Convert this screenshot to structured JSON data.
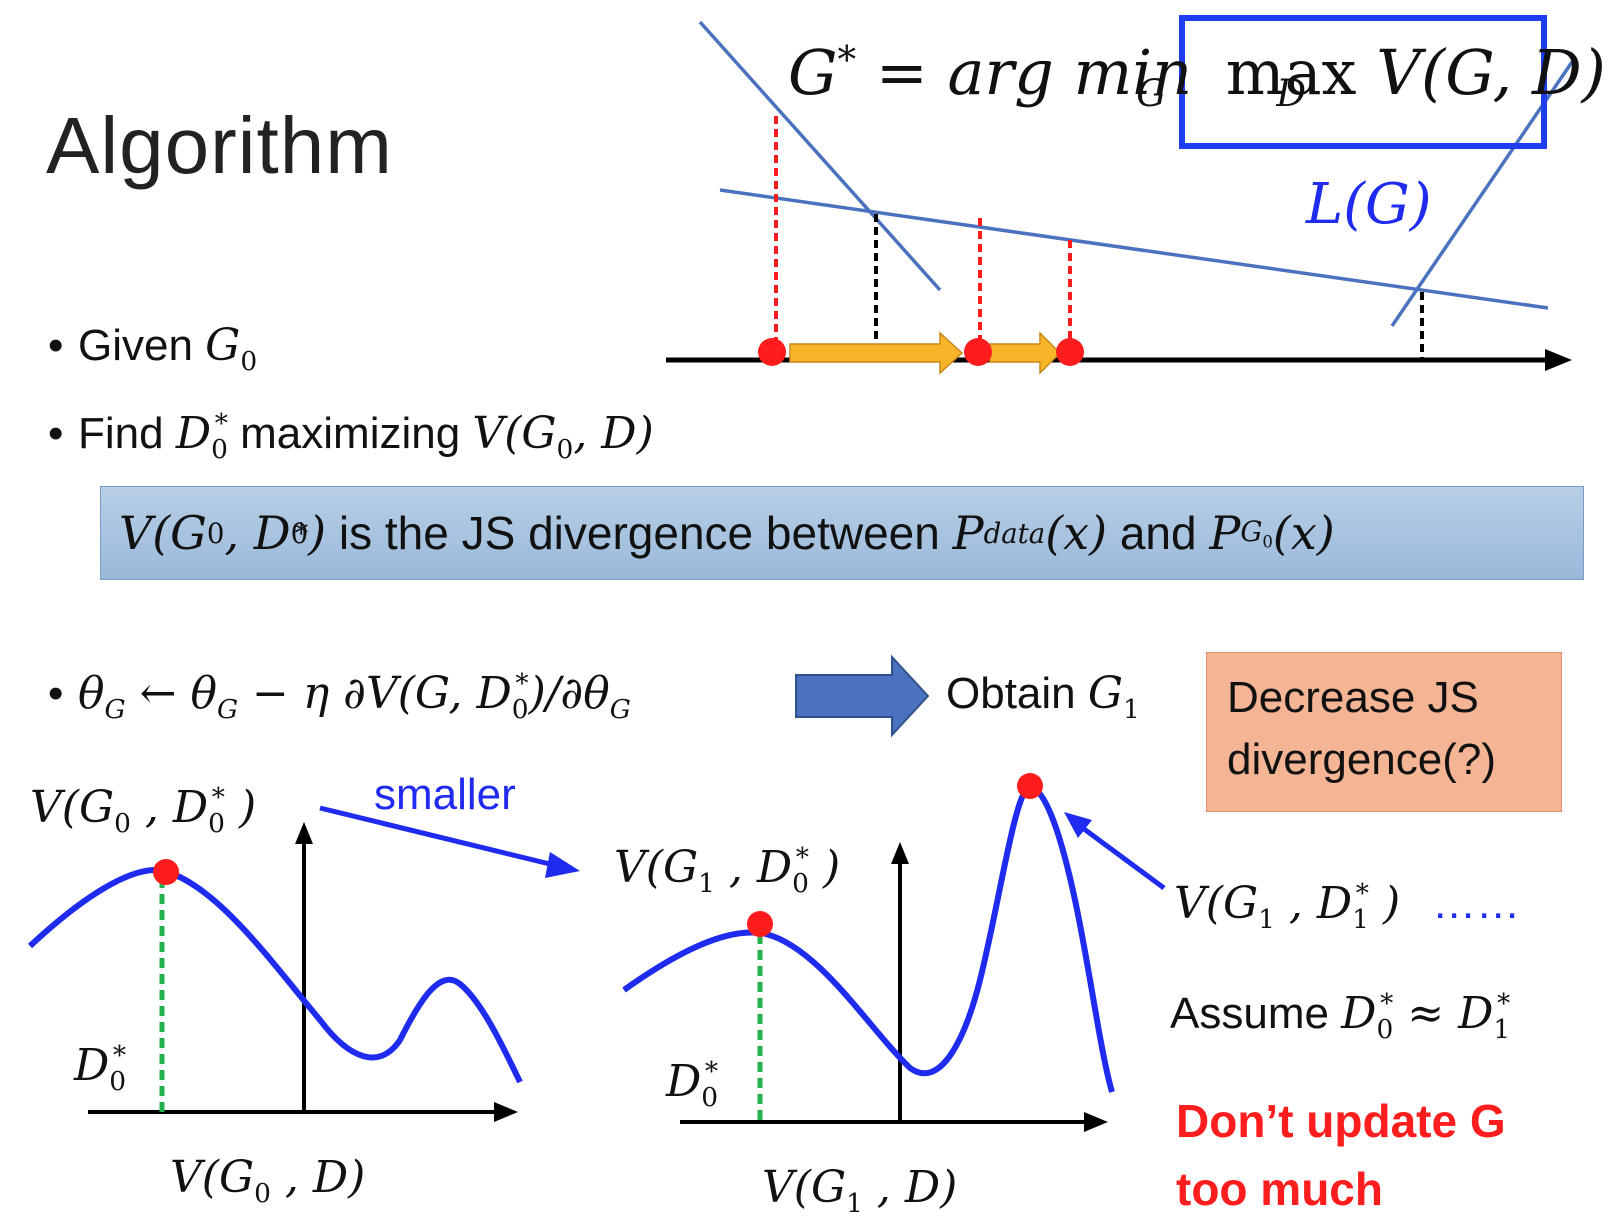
{
  "title": "Algorithm",
  "formula_top": {
    "lhs": "G",
    "star": "*",
    "eq": "=",
    "argmin": "arg min",
    "min_sub": "G",
    "max": "max",
    "max_sub": "D",
    "v": "V(G, D)"
  },
  "lg_label": "L(G)",
  "bullets": {
    "b1_text": "Given ",
    "b1_math": "G",
    "b1_sub": "0",
    "b2_text": "Find ",
    "b2_math": "D",
    "b2_sub": "0",
    "b2_sup": "*",
    "b2_rest": " maximizing ",
    "b2_v": "V(G",
    "b2_v_sub": "0",
    "b2_v_end": ", D)"
  },
  "js_box": {
    "v_open": "V(G",
    "v_sub0": "0",
    "v_mid": ", D",
    "v_sub1": "0",
    "v_sup": "*",
    "v_close": ")",
    "text1": " is the JS divergence between ",
    "p1": "P",
    "p1_sub": "data",
    "p1_x": "(x)",
    "and": " and ",
    "p2": "P",
    "p2_sub": "G",
    "p2_subsub": "0",
    "p2_x": "(x)"
  },
  "update": {
    "theta": "θ",
    "theta_sub": "G",
    "arrow": " ← ",
    "minus": " − η ∂V(G, D",
    "d_sub": "0",
    "d_sup": "*",
    "end": ")/∂θ",
    "end_sub": "G",
    "obtain": "Obtain ",
    "g1": "G",
    "g1_sub": "1"
  },
  "orange_box": {
    "line1": "Decrease JS",
    "line2": "divergence(?)"
  },
  "smaller_label": "smaller",
  "left_plot": {
    "top_label_open": "V(G",
    "top_label_sub": "0",
    "top_label_mid": " , D",
    "top_label_dsub": "0",
    "top_label_sup": "*",
    "top_label_close": " )",
    "d_label": "D",
    "d_sub": "0",
    "d_sup": "*",
    "bottom_open": "V(G",
    "bottom_sub": "0",
    "bottom_close": " , D)"
  },
  "mid_plot": {
    "top_label_open": "V(G",
    "top_label_sub": "1",
    "top_label_mid": " , D",
    "top_label_dsub": "0",
    "top_label_sup": "*",
    "top_label_close": " )",
    "d_label": "D",
    "d_sub": "0",
    "d_sup": "*",
    "bottom_open": "V(G",
    "bottom_sub": "1",
    "bottom_close": " , D)"
  },
  "right_labels": {
    "v_open": "V(G",
    "v_sub": "1",
    "v_mid": " , D",
    "v_dsub": "1",
    "v_sup": "*",
    "v_close": " )",
    "dots": "……",
    "assume": "Assume ",
    "d0": "D",
    "d0_sub": "0",
    "d0_sup": "*",
    "approx": " ≈ ",
    "d1": "D",
    "d1_sub": "1",
    "d1_sup": "*",
    "warn1": "Don’t update G",
    "warn2": "too much"
  },
  "colors": {
    "blue_line": "#4a72bf",
    "curve_blue": "#1f2bef",
    "red_dot": "#ff1c1c",
    "gold_arrow": "#f7b52a",
    "green_dash": "#22b14c",
    "box_blue": "#1f3df0"
  }
}
